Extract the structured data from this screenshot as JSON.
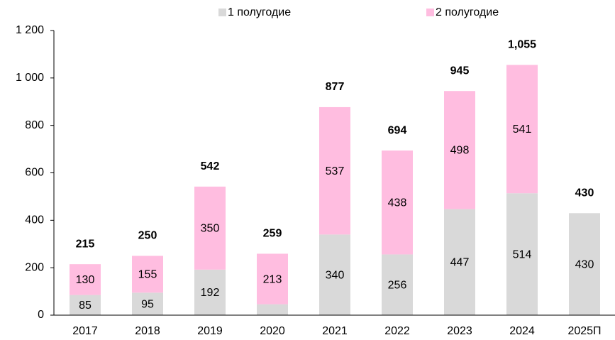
{
  "chart_data": {
    "type": "stacked_bar",
    "categories": [
      "2017",
      "2018",
      "2019",
      "2020",
      "2021",
      "2022",
      "2023",
      "2024",
      "2025П"
    ],
    "series": [
      {
        "name": "1 полугодие",
        "color": "#d9d9d9",
        "values": [
          85,
          95,
          192,
          46,
          340,
          256,
          447,
          514,
          430
        ],
        "value_labels": [
          "85",
          "95",
          "192",
          null,
          "340",
          "256",
          "447",
          "514",
          "430"
        ]
      },
      {
        "name": "2 полугодие",
        "color": "#ffbde0",
        "values": [
          130,
          155,
          350,
          213,
          537,
          438,
          498,
          541,
          null
        ],
        "value_labels": [
          "130",
          "155",
          "350",
          "213",
          "537",
          "438",
          "498",
          "541",
          null
        ]
      }
    ],
    "totals": {
      "values": [
        215,
        250,
        542,
        259,
        877,
        694,
        945,
        1055,
        430
      ],
      "value_labels": [
        "215",
        "250",
        "542",
        "259",
        "877",
        "694",
        "945",
        "1,055",
        "430"
      ]
    },
    "ylim": [
      0,
      1200
    ],
    "yticks": [
      0,
      200,
      400,
      600,
      800,
      {
        "value": 1000,
        "label": "1 000"
      },
      {
        "value": 1200,
        "label": "1 200"
      }
    ],
    "grid": false,
    "legend": "top"
  }
}
